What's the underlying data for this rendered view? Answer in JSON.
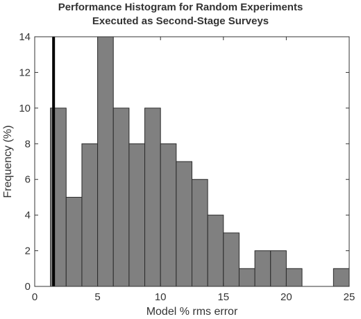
{
  "chart_data": {
    "type": "bar",
    "title": "Performance Histogram for Random Experiments",
    "subtitle": "Executed as Second-Stage Surveys",
    "xlabel": "Model % rms error",
    "ylabel": "Frequency (%)",
    "xlim": [
      0,
      25
    ],
    "ylim": [
      0,
      14
    ],
    "xticks": [
      0,
      5,
      10,
      15,
      20,
      25
    ],
    "yticks": [
      0,
      2,
      4,
      6,
      8,
      10,
      12,
      14
    ],
    "bin_width": 1.25,
    "bin_starts": [
      1.25,
      2.5,
      3.75,
      5.0,
      6.25,
      7.5,
      8.75,
      10.0,
      11.25,
      12.5,
      13.75,
      15.0,
      16.25,
      17.5,
      18.75,
      20.0,
      21.25,
      22.5,
      23.75
    ],
    "values": [
      10,
      5,
      8,
      14,
      10,
      8,
      10,
      8,
      7,
      6,
      4,
      3,
      1,
      2,
      2,
      1,
      0,
      0,
      1
    ],
    "bar_color": "#808080",
    "reference_line_x": 1.5,
    "reference_line_color": "#000000",
    "grid": false
  }
}
